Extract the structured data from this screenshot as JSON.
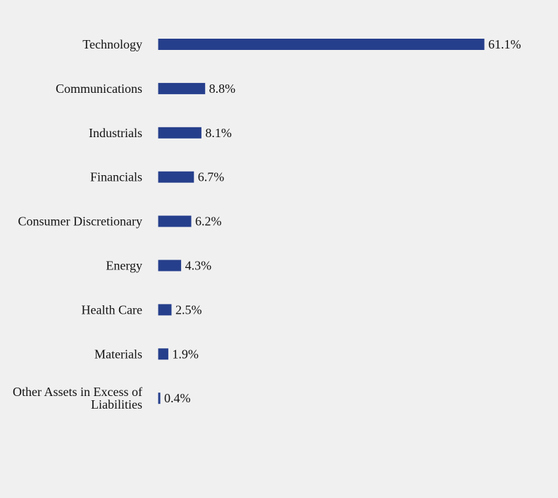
{
  "colors": {
    "background": "#f0f0f0",
    "bar": "#263f8c",
    "text": "#111111"
  },
  "chart_data": {
    "type": "bar",
    "orientation": "horizontal",
    "categories": [
      "Technology",
      "Communications",
      "Industrials",
      "Financials",
      "Consumer Discretionary",
      "Energy",
      "Health Care",
      "Materials",
      [
        "Other Assets in Excess of",
        "Liabilities"
      ]
    ],
    "values": [
      61.1,
      8.8,
      8.1,
      6.7,
      6.2,
      4.3,
      2.5,
      1.9,
      0.4
    ],
    "value_labels": [
      "61.1%",
      "8.8%",
      "8.1%",
      "6.7%",
      "6.2%",
      "4.3%",
      "2.5%",
      "1.9%",
      "0.4%"
    ],
    "unit": "%",
    "xlim": [
      0,
      61.1
    ],
    "grid": false,
    "legend": "none"
  }
}
